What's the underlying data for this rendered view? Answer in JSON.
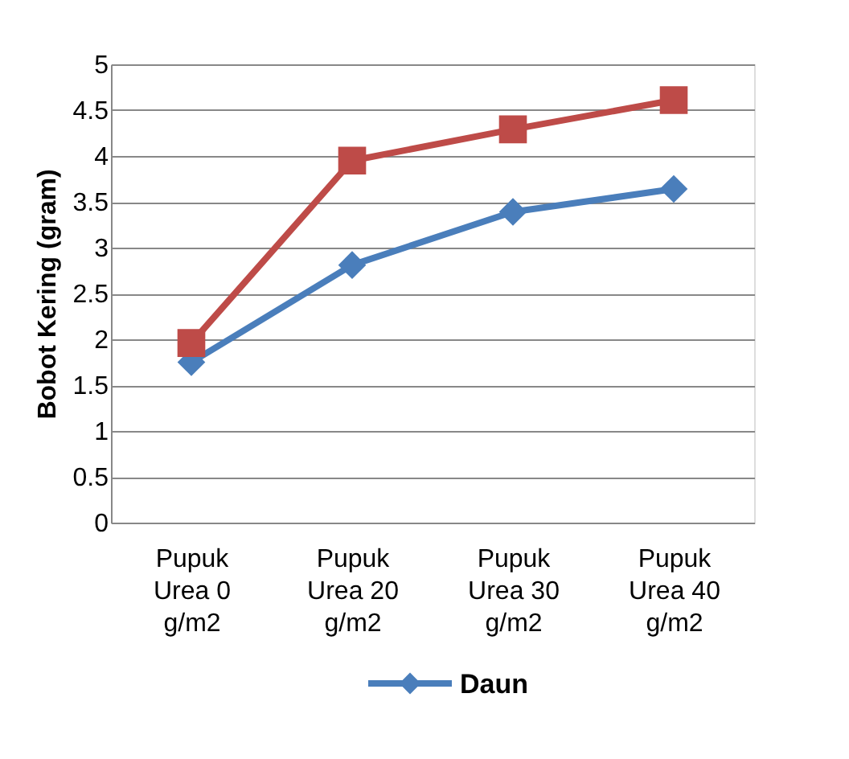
{
  "chart_data": {
    "type": "line",
    "ylabel": "Bobot Kering (gram)",
    "categories": [
      "Pupuk Urea 0 g/m2",
      "Pupuk Urea 20 g/m2",
      "Pupuk Urea 30 g/m2",
      "Pupuk Urea 40 g/m2"
    ],
    "series": [
      {
        "name": "Daun",
        "color": "#4a7ebb",
        "marker": "diamond",
        "values": [
          1.75,
          2.81,
          3.39,
          3.64
        ]
      },
      {
        "color": "#be4b48",
        "marker": "square",
        "values": [
          1.96,
          3.95,
          4.29,
          4.61
        ]
      }
    ],
    "ylim": [
      0,
      5
    ],
    "yticks": [
      0,
      0.5,
      1,
      1.5,
      2,
      2.5,
      3,
      3.5,
      4,
      4.5,
      5
    ],
    "grid": "y",
    "legend": "bottom",
    "line_style": "solid"
  }
}
